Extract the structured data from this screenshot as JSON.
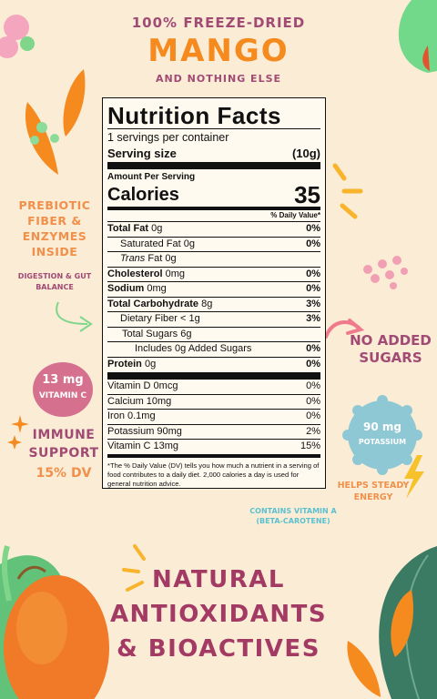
{
  "header": {
    "line1": "100% FREEZE-DRIED",
    "line2": "MANGO",
    "line3": "AND NOTHING ELSE"
  },
  "label": {
    "title": "Nutrition Facts",
    "servings": "1 servings per container",
    "serving_size_label": "Serving size",
    "serving_size_value": "(10g)",
    "amount_per_serving": "Amount Per Serving",
    "calories_label": "Calories",
    "calories_value": "35",
    "dv_header": "% Daily Value*",
    "rows": [
      {
        "bold": "Total Fat",
        "text": " 0g",
        "dv": "0%"
      },
      {
        "bold": "",
        "text": "Saturated Fat 0g",
        "dv": "0%"
      },
      {
        "bold": "",
        "text": "Fat 0g",
        "italic": "Trans",
        "dv": ""
      },
      {
        "bold": "Cholesterol",
        "text": " 0mg",
        "dv": "0%"
      },
      {
        "bold": "Sodium",
        "text": " 0mg",
        "dv": "0%"
      },
      {
        "bold": "Total Carbohydrate",
        "text": " 8g",
        "dv": "3%"
      },
      {
        "bold": "",
        "text": "Dietary Fiber < 1g",
        "dv": "3%"
      },
      {
        "bold": "",
        "text": "Total Sugars 6g",
        "dv": ""
      },
      {
        "bold": "",
        "text": "Includes 0g Added Sugars",
        "dv": "0%"
      },
      {
        "bold": "Protein",
        "text": " 0g",
        "dv": "0%"
      }
    ],
    "vitamins": [
      {
        "text": "Vitamin D 0mcg",
        "dv": "0%"
      },
      {
        "text": "Calcium 10mg",
        "dv": "0%"
      },
      {
        "text": "Iron 0.1mg",
        "dv": "0%"
      },
      {
        "text": "Potassium 90mg",
        "dv": "2%"
      },
      {
        "text": "Vitamin C 13mg",
        "dv": "15%"
      }
    ],
    "footnote": "*The % Daily Value (DV) tells you how much a nutrient in a serving of food contributes to a daily diet. 2,000 calories a day is used for general nutrition advice."
  },
  "callouts": {
    "prebiotic": "PREBIOTIC FIBER & ENZYMES INSIDE",
    "digestion": "DIGESTION & GUT BALANCE",
    "vitc_amount": "13 mg",
    "vitc_label": "VITAMIN C",
    "immune": "IMMUNE SUPPORT",
    "immune_dv": "15% DV",
    "no_added": "NO ADDED SUGARS",
    "potassium_amount": "90 mg",
    "potassium_label": "POTASSIUM",
    "steady": "HELPS STEADY ENERGY",
    "carotene": "CONTAINS VITAMIN A (BETA-CAROTENE)"
  },
  "bottom": {
    "line1": "NATURAL",
    "line2": "ANTIOXIDANTS",
    "line3": "& BIOACTIVES"
  },
  "colors": {
    "background": "#fbecd6",
    "plum": "#a04a74",
    "orange": "#f58a1f",
    "teal": "#5cc0cf",
    "pink_badge": "#d6708f",
    "blue_badge": "#8ec8d4"
  }
}
